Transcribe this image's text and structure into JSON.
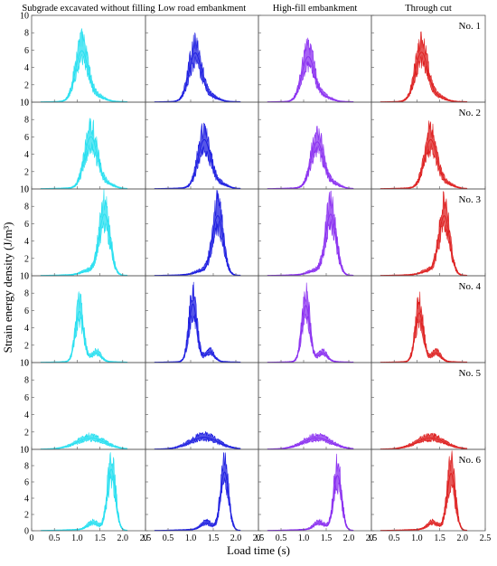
{
  "chart_data": {
    "type": "line",
    "ylabel": "Strain energy density (J/m³)",
    "xlabel": "Load time (s)",
    "xlim": [
      0,
      2.5
    ],
    "ylim": [
      0,
      10
    ],
    "x_ticks": [
      "0",
      "0.5",
      "1.0",
      "1.5",
      "2.0",
      "2.5"
    ],
    "y_ticks": [
      "0",
      "2",
      "4",
      "6",
      "8",
      "10"
    ],
    "columns": [
      {
        "name": "Subgrade excavated without filling",
        "color": "#27dff0"
      },
      {
        "name": "Low road embankment",
        "color": "#1d1ee0"
      },
      {
        "name": "High-fill embankment",
        "color": "#8a2ff0"
      },
      {
        "name": "Through cut",
        "color": "#dd1f1f"
      }
    ],
    "rows": [
      {
        "label": "No. 1",
        "peaks": [
          {
            "x": 1.1,
            "h": [
              6.8,
              6.5,
              6.0,
              6.6
            ],
            "w": 0.14
          },
          {
            "x": 1.45,
            "h": [
              0.6,
              0.6,
              0.6,
              0.6
            ],
            "w": 0.15
          }
        ]
      },
      {
        "label": "No. 2",
        "peaks": [
          {
            "x": 1.3,
            "h": [
              6.9,
              6.5,
              6.2,
              6.5
            ],
            "w": 0.14
          },
          {
            "x": 1.65,
            "h": [
              0.6,
              0.6,
              0.6,
              0.6
            ],
            "w": 0.15
          }
        ]
      },
      {
        "label": "No. 3",
        "peaks": [
          {
            "x": 1.6,
            "h": [
              8.2,
              8.0,
              8.2,
              8.0
            ],
            "w": 0.12
          },
          {
            "x": 1.25,
            "h": [
              0.5,
              0.5,
              0.5,
              0.5
            ],
            "w": 0.15
          }
        ]
      },
      {
        "label": "No. 4",
        "peaks": [
          {
            "x": 1.05,
            "h": [
              6.8,
              7.8,
              7.6,
              6.6
            ],
            "w": 0.09
          },
          {
            "x": 1.42,
            "h": [
              1.2,
              1.3,
              1.2,
              1.2
            ],
            "w": 0.1
          }
        ]
      },
      {
        "label": "No. 5",
        "peaks": [
          {
            "x": 1.3,
            "h": [
              1.4,
              1.5,
              1.4,
              1.4
            ],
            "w": 0.3
          }
        ]
      },
      {
        "label": "No. 6",
        "peaks": [
          {
            "x": 1.75,
            "h": [
              8.8,
              8.4,
              7.9,
              8.2
            ],
            "w": 0.09
          },
          {
            "x": 1.35,
            "h": [
              1.0,
              1.0,
              1.0,
              1.0
            ],
            "w": 0.12
          }
        ]
      }
    ]
  }
}
